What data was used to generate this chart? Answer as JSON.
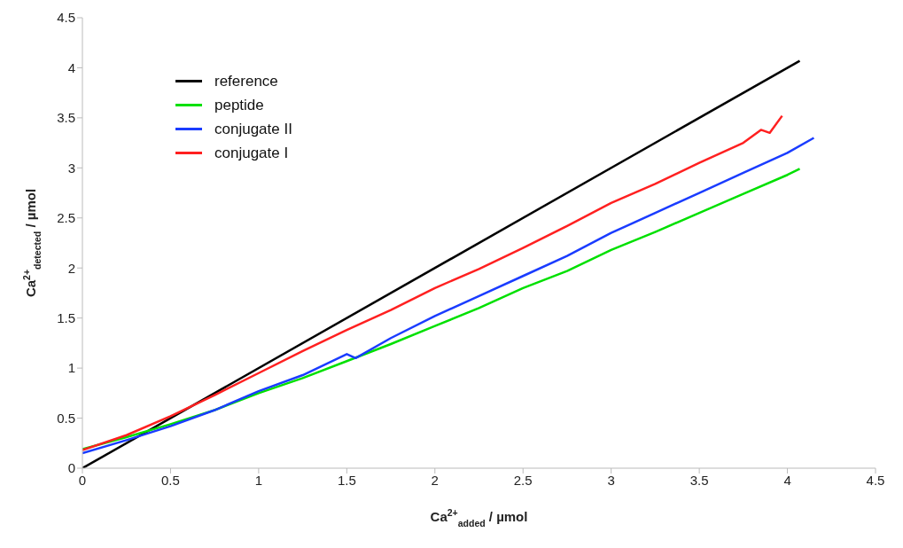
{
  "chart_data": {
    "type": "line",
    "xlabel": "Ca$^{2+}$$_{added}$ / µmol",
    "ylabel": "Ca$^{2+}$$_{detected}$ / µmol",
    "xlim": [
      0,
      4.5
    ],
    "xticks": [
      0,
      0.5,
      1,
      1.5,
      2,
      2.5,
      3,
      3.5,
      4,
      4.5
    ],
    "ylim": [
      0,
      4.5
    ],
    "yticks": [
      0,
      0.5,
      1,
      1.5,
      2,
      2.5,
      3,
      3.5,
      4,
      4.5
    ],
    "legend": "top left",
    "marker": "none",
    "line_style": "solid",
    "series": [
      {
        "name": "reference",
        "color": "#000000",
        "x": [
          0,
          4.07
        ],
        "values": [
          0,
          4.07
        ]
      },
      {
        "name": "peptide",
        "color": "#00e000",
        "x": [
          0,
          0.25,
          0.5,
          0.75,
          1,
          1.25,
          1.5,
          1.75,
          2,
          2.25,
          2.5,
          2.75,
          3,
          3.25,
          3.5,
          3.75,
          4,
          4.07
        ],
        "values": [
          0.19,
          0.31,
          0.44,
          0.58,
          0.75,
          0.9,
          1.07,
          1.24,
          1.42,
          1.6,
          1.8,
          1.97,
          2.18,
          2.36,
          2.55,
          2.74,
          2.93,
          2.99
        ]
      },
      {
        "name": "conjugate II",
        "color": "#1a3cff",
        "x": [
          0,
          0.25,
          0.5,
          0.75,
          1,
          1.25,
          1.5,
          1.55,
          1.75,
          2,
          2.25,
          2.5,
          2.75,
          3,
          3.25,
          3.5,
          3.75,
          4,
          4.15
        ],
        "values": [
          0.15,
          0.28,
          0.42,
          0.58,
          0.77,
          0.93,
          1.14,
          1.1,
          1.3,
          1.52,
          1.72,
          1.92,
          2.12,
          2.35,
          2.55,
          2.75,
          2.95,
          3.15,
          3.3
        ]
      },
      {
        "name": "conjugate I",
        "color": "#ff2020",
        "x": [
          0,
          0.25,
          0.5,
          0.75,
          1,
          1.25,
          1.5,
          1.75,
          2,
          2.25,
          2.5,
          2.75,
          3,
          3.25,
          3.5,
          3.75,
          3.85,
          3.9,
          3.97
        ],
        "values": [
          0.18,
          0.33,
          0.52,
          0.73,
          0.95,
          1.17,
          1.38,
          1.58,
          1.8,
          1.99,
          2.2,
          2.42,
          2.65,
          2.84,
          3.05,
          3.25,
          3.38,
          3.35,
          3.52
        ]
      }
    ]
  }
}
